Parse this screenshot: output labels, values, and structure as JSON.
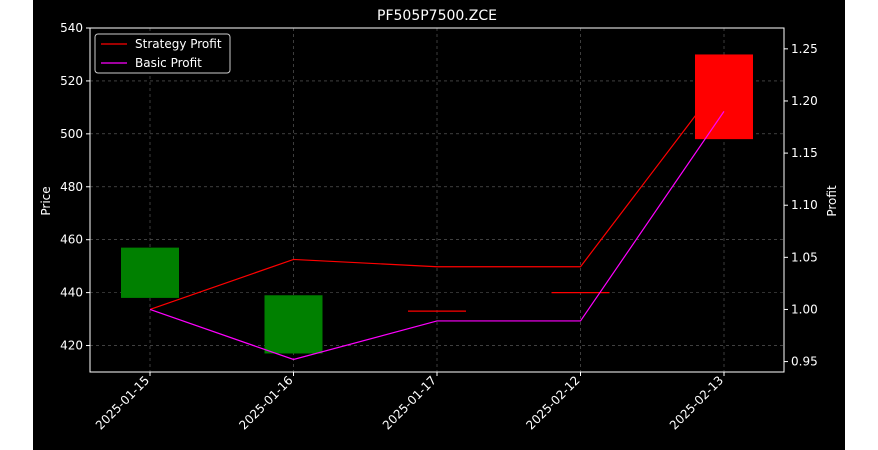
{
  "chart_data": {
    "type": "candlestick+line",
    "title": "PF505P7500.ZCE",
    "xlabel": "",
    "ylabel_left": "Price",
    "ylabel_right": "Profit",
    "categories": [
      "2025-01-15",
      "2025-01-16",
      "2025-01-17",
      "2025-02-12",
      "2025-02-13"
    ],
    "ylim_left": [
      410,
      540
    ],
    "yticks_left": [
      420,
      440,
      460,
      480,
      500,
      520,
      540
    ],
    "ylim_right": [
      0.94,
      1.27
    ],
    "yticks_right": [
      0.95,
      1.0,
      1.05,
      1.1,
      1.15,
      1.2,
      1.25
    ],
    "candles": [
      {
        "date": "2025-01-15",
        "open": 438,
        "close": 457,
        "color": "#008000"
      },
      {
        "date": "2025-01-16",
        "open": 417,
        "close": 439,
        "color": "#008000"
      },
      {
        "date": "2025-01-17",
        "open": 433,
        "close": 433,
        "color": "#ff0000"
      },
      {
        "date": "2025-02-12",
        "open": 440,
        "close": 440,
        "color": "#ff0000"
      },
      {
        "date": "2025-02-13",
        "open": 530,
        "close": 498,
        "color": "#ff0000"
      }
    ],
    "series": [
      {
        "name": "Strategy Profit",
        "axis": "right",
        "color": "#ff0000",
        "values": [
          1.0,
          1.048,
          1.041,
          1.041,
          1.222
        ]
      },
      {
        "name": "Basic Profit",
        "axis": "right",
        "color": "#ff00ff",
        "values": [
          1.0,
          0.952,
          0.989,
          0.989,
          1.19
        ]
      }
    ],
    "grid": true,
    "legend_position": "top-left",
    "background": "#000000",
    "foreground": "#ffffff"
  }
}
